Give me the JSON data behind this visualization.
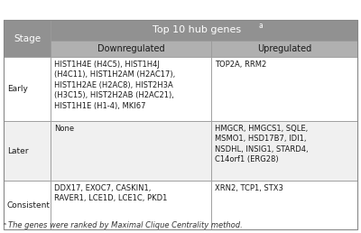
{
  "title": "Top 10 hub genes",
  "title_superscript": "a",
  "col_header_left": "Stage",
  "col_header_down": "Downregulated",
  "col_header_up": "Upregulated",
  "header_bg": "#919191",
  "subheader_bg": "#b0b0b0",
  "row_bg_white": "#ffffff",
  "row_bg_light": "#f0f0f0",
  "header_text_color": "#ffffff",
  "subheader_text_color": "#1a1a1a",
  "cell_text_color": "#1a1a1a",
  "border_color": "#999999",
  "footnote": "aThe genes were ranked by Maximal Clique Centrality method.",
  "rows": [
    {
      "stage": "Early",
      "down": "HIST1H4E (H4C5), HIST1H4J\n(H4C11), HIST1H2AM (H2AC17),\nHIST1H2AE (H2AC8), HIST2H3A\n(H3C15), HIST2H2AB (H2AC21),\nHIST1H1E (H1-4), MKI67",
      "up": "TOP2A, RRM2"
    },
    {
      "stage": "Later",
      "down": "None",
      "up": "HMGCR, HMGCS1, SQLE,\nMSMO1, HSD17B7, IDI1,\nNSDHL, INSIG1, STARD4,\nC14orf1 (ERG28)"
    },
    {
      "stage": "Consistent",
      "down": "DDX17, EXOC7, CASKIN1,\nRAVER1, LCE1D, LCE1C, PKD1",
      "up": "XRN2, TCP1, STX3"
    }
  ],
  "figsize": [
    4.0,
    2.58
  ],
  "dpi": 100
}
